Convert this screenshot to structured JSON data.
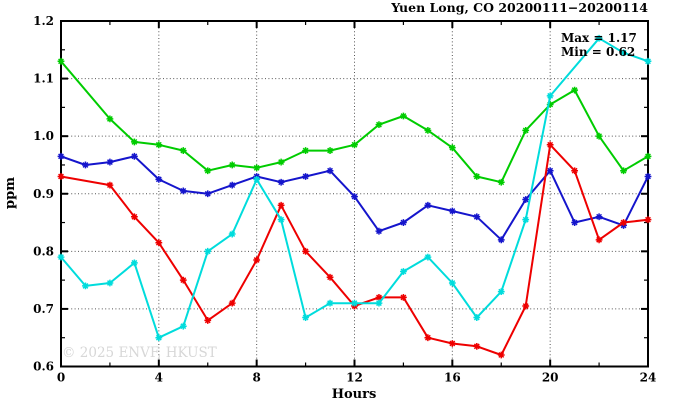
{
  "watermark": "© 2025 ENVF, HKUST",
  "chart_data": {
    "type": "line",
    "title": "Yuen Long, CO 20200111−20200114",
    "xlabel": "Hours",
    "ylabel": "ppm",
    "xlim": [
      0,
      24
    ],
    "ylim": [
      0.6,
      1.2
    ],
    "grid": true,
    "legend": "none",
    "marker": "asterisk",
    "xticks": [
      0,
      4,
      8,
      12,
      16,
      20,
      24
    ],
    "xtick_labels": [
      "0",
      "4",
      "8",
      "12",
      "16",
      "20",
      "24"
    ],
    "xtick_minor": [
      2,
      6,
      10,
      14,
      18,
      22
    ],
    "yticks": [
      0.6,
      0.7,
      0.8,
      0.9,
      1.0,
      1.1,
      1.2
    ],
    "ytick_labels": [
      "0.6",
      "0.7",
      "0.8",
      "0.9",
      "1.0",
      "1.1",
      "1.2"
    ],
    "ytick_minor": [
      0.65,
      0.75,
      0.85,
      0.95,
      1.05,
      1.15
    ],
    "annotations": {
      "max": "Max = 1.17",
      "min": "Min = 0.62"
    },
    "x": [
      0,
      1,
      2,
      3,
      4,
      5,
      6,
      7,
      8,
      9,
      10,
      11,
      12,
      13,
      14,
      15,
      16,
      17,
      18,
      19,
      20,
      21,
      22,
      23,
      24
    ],
    "series": [
      {
        "name": "series-green",
        "color": "#00cc00",
        "values": [
          1.13,
          null,
          1.03,
          0.99,
          0.985,
          0.975,
          0.94,
          0.95,
          0.945,
          0.955,
          0.975,
          0.975,
          0.985,
          1.02,
          1.035,
          1.01,
          0.98,
          0.93,
          0.92,
          1.01,
          1.055,
          1.08,
          1.0,
          0.94,
          0.965
        ]
      },
      {
        "name": "series-blue",
        "color": "#1515cc",
        "values": [
          0.965,
          0.95,
          0.955,
          0.965,
          0.925,
          0.905,
          0.9,
          0.915,
          0.93,
          0.92,
          0.93,
          0.94,
          0.895,
          0.835,
          0.85,
          0.88,
          0.87,
          0.86,
          0.82,
          0.89,
          0.94,
          0.85,
          0.86,
          0.845,
          0.93
        ]
      },
      {
        "name": "series-red",
        "color": "#ee0000",
        "values": [
          0.93,
          null,
          0.915,
          0.86,
          0.815,
          0.75,
          0.68,
          0.71,
          0.785,
          0.88,
          0.8,
          0.755,
          0.705,
          0.72,
          0.72,
          0.65,
          0.64,
          0.635,
          0.62,
          0.705,
          0.985,
          0.94,
          0.82,
          0.85,
          0.855
        ]
      },
      {
        "name": "series-cyan",
        "color": "#00dcdc",
        "values": [
          0.79,
          0.74,
          0.745,
          0.78,
          0.65,
          0.67,
          0.8,
          0.83,
          0.925,
          0.855,
          0.685,
          0.71,
          0.71,
          0.71,
          0.765,
          0.79,
          0.745,
          0.685,
          0.73,
          0.855,
          1.07,
          null,
          1.17,
          1.145,
          1.13
        ]
      }
    ]
  }
}
